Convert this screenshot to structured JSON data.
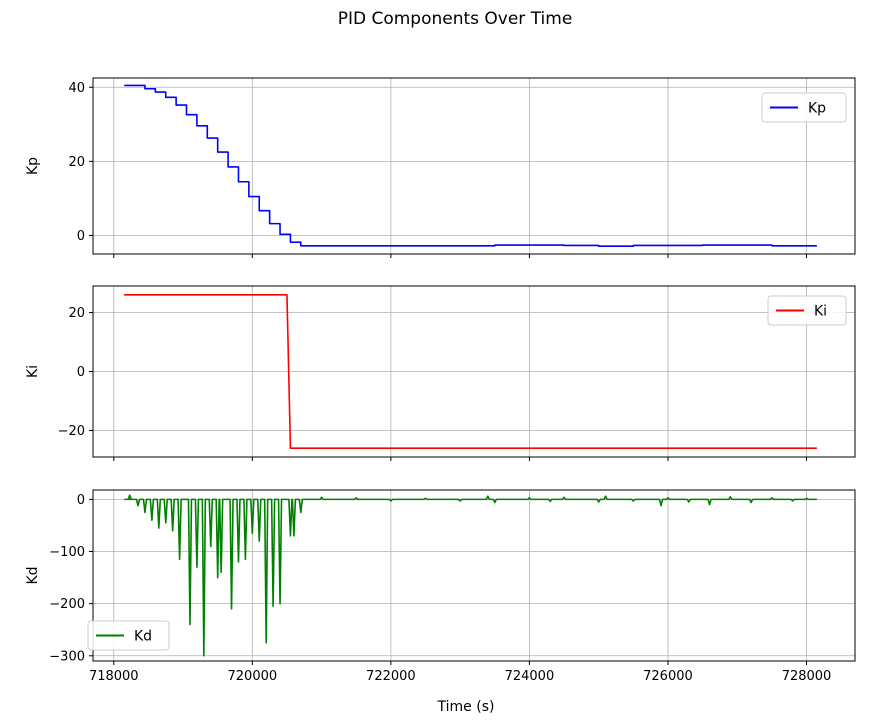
{
  "figure": {
    "title": "PID Components Over Time",
    "xlabel": "Time (s)"
  },
  "colors": {
    "Kp": "#0000ff",
    "Ki": "#ff0000",
    "Kd": "#008000",
    "grid": "#b0b0b0"
  },
  "chart_data": [
    {
      "type": "line",
      "ylabel": "Kp",
      "xlim": [
        717700,
        728700
      ],
      "ylim": [
        -5,
        42.5
      ],
      "xticks": [
        718000,
        720000,
        722000,
        724000,
        726000,
        728000
      ],
      "yticks": [
        0,
        20,
        40
      ],
      "ytick_labels": [
        "0",
        "20",
        "40"
      ],
      "show_xtick_labels": false,
      "grid": true,
      "legend": "upper right",
      "series": [
        {
          "name": "Kp",
          "color": "#0000ff",
          "x": [
            718150,
            718300,
            718450,
            718600,
            718750,
            718900,
            719050,
            719200,
            719350,
            719500,
            719650,
            719800,
            719950,
            720100,
            720250,
            720400,
            720550,
            720700,
            720800,
            721500,
            722500,
            723500,
            724500,
            725000,
            725500,
            726500,
            727500,
            728150
          ],
          "y": [
            40.5,
            40.5,
            39.6,
            38.7,
            37.3,
            35.2,
            32.6,
            29.6,
            26.3,
            22.5,
            18.5,
            14.5,
            10.5,
            6.7,
            3.2,
            0.3,
            -1.8,
            -2.8,
            -2.8,
            -2.8,
            -2.8,
            -2.6,
            -2.7,
            -2.9,
            -2.7,
            -2.6,
            -2.8,
            -2.8
          ],
          "step": true
        }
      ]
    },
    {
      "type": "line",
      "ylabel": "Ki",
      "xlim": [
        717700,
        728700
      ],
      "ylim": [
        -29,
        29
      ],
      "xticks": [
        718000,
        720000,
        722000,
        724000,
        726000,
        728000
      ],
      "yticks": [
        -20,
        0,
        20
      ],
      "ytick_labels": [
        "−20",
        "0",
        "20"
      ],
      "show_xtick_labels": false,
      "grid": true,
      "legend": "upper right",
      "series": [
        {
          "name": "Ki",
          "color": "#ff0000",
          "x": [
            718150,
            720500,
            720550,
            728150
          ],
          "y": [
            26,
            26,
            -26,
            -26
          ]
        }
      ]
    },
    {
      "type": "line",
      "ylabel": "Kd",
      "xlim": [
        717700,
        728700
      ],
      "ylim": [
        -310,
        18
      ],
      "xticks": [
        718000,
        720000,
        722000,
        724000,
        726000,
        728000
      ],
      "xtick_labels": [
        "718000",
        "720000",
        "722000",
        "724000",
        "726000",
        "728000"
      ],
      "yticks": [
        -300,
        -200,
        -100,
        0
      ],
      "ytick_labels": [
        "−300",
        "−200",
        "−100",
        "0"
      ],
      "show_xtick_labels": true,
      "grid": true,
      "legend": "lower left",
      "series": [
        {
          "name": "Kd",
          "color": "#008000",
          "baseline": 0,
          "start": [
            718150,
            718250
          ],
          "end": 728150,
          "spikes": [
            [
              718230,
              8
            ],
            [
              718350,
              -12
            ],
            [
              718450,
              -25
            ],
            [
              718550,
              -40
            ],
            [
              718650,
              -55
            ],
            [
              718750,
              -45
            ],
            [
              718850,
              -60
            ],
            [
              718950,
              -115
            ],
            [
              719100,
              -240
            ],
            [
              719200,
              -130
            ],
            [
              719300,
              -300
            ],
            [
              719400,
              -90
            ],
            [
              719500,
              -150
            ],
            [
              719550,
              -140
            ],
            [
              719700,
              -210
            ],
            [
              719800,
              -120
            ],
            [
              719900,
              -115
            ],
            [
              720000,
              -65
            ],
            [
              720100,
              -80
            ],
            [
              720200,
              -275
            ],
            [
              720300,
              -205
            ],
            [
              720400,
              -200
            ],
            [
              720550,
              -70
            ],
            [
              720600,
              -70
            ],
            [
              720700,
              -25
            ],
            [
              721000,
              4
            ],
            [
              721500,
              3
            ],
            [
              722000,
              -3
            ],
            [
              722500,
              2
            ],
            [
              723000,
              -3
            ],
            [
              723400,
              6
            ],
            [
              723500,
              -6
            ],
            [
              724000,
              3
            ],
            [
              724300,
              -4
            ],
            [
              724500,
              4
            ],
            [
              725000,
              -5
            ],
            [
              725100,
              6
            ],
            [
              725500,
              -3
            ],
            [
              725900,
              -12
            ],
            [
              726000,
              3
            ],
            [
              726300,
              -5
            ],
            [
              726600,
              -10
            ],
            [
              726900,
              5
            ],
            [
              727200,
              -6
            ],
            [
              727500,
              3
            ],
            [
              727800,
              -3
            ],
            [
              728000,
              2
            ]
          ]
        }
      ]
    }
  ]
}
